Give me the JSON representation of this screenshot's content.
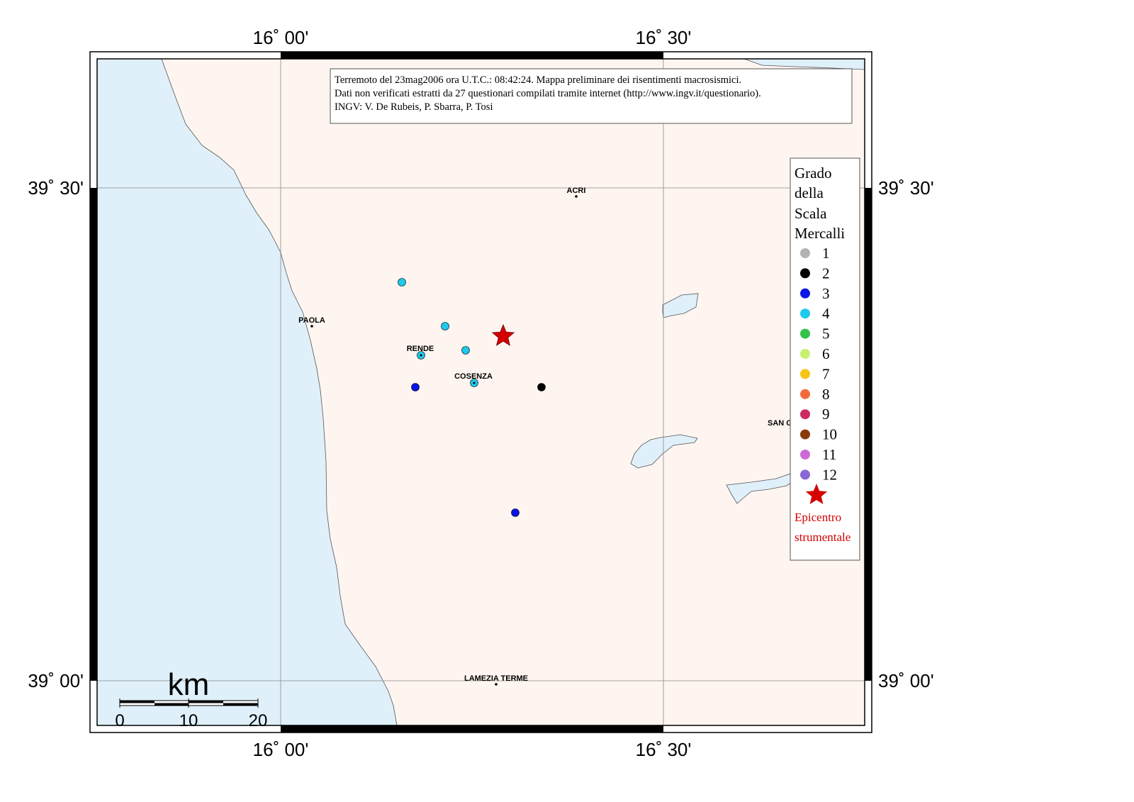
{
  "map_labels": {
    "lon_left": "16˚ 00'",
    "lon_right": "16˚ 30'",
    "lat_top": "39˚ 30'",
    "lat_bottom": "39˚ 00'"
  },
  "cities": [
    {
      "name": "ACRI"
    },
    {
      "name": "PAOLA"
    },
    {
      "name": "RENDE"
    },
    {
      "name": "COSENZA"
    },
    {
      "name": "SAN G"
    },
    {
      "name": "LAMEZIA TERME"
    }
  ],
  "info_box": {
    "line1": "Terremoto del 23mag2006 ora U.T.C.: 08:42:24.  Mappa preliminare dei risentimenti macrosismici.",
    "line2": "Dati non verificati estratti da 27 questionari compilati tramite internet (http://www.ingv.it/questionario).",
    "line3": "INGV: V.  De Rubeis, P.  Sbarra, P.  Tosi"
  },
  "legend": {
    "title_lines": [
      "Grado",
      "della",
      "Scala",
      "Mercalli"
    ],
    "items": [
      {
        "label": "1",
        "color": "#b3b3b3"
      },
      {
        "label": "2",
        "color": "#000000"
      },
      {
        "label": "3",
        "color": "#0a14e6"
      },
      {
        "label": "4",
        "color": "#1fc8ec"
      },
      {
        "label": "5",
        "color": "#33c24a"
      },
      {
        "label": "6",
        "color": "#c7f06e"
      },
      {
        "label": "7",
        "color": "#f5c518"
      },
      {
        "label": "8",
        "color": "#f26a3b"
      },
      {
        "label": "9",
        "color": "#cc2a5e"
      },
      {
        "label": "10",
        "color": "#8b3a0e"
      },
      {
        "label": "11",
        "color": "#cc6bd6"
      },
      {
        "label": "12",
        "color": "#8868d4"
      }
    ],
    "epicenter_lines": [
      "Epicentro",
      "strumentale"
    ],
    "epicenter_color": "#d40000"
  },
  "intensity_points": [
    {
      "intensity": 4
    },
    {
      "intensity": 4
    },
    {
      "intensity": 4
    },
    {
      "intensity": 4
    },
    {
      "intensity": 4
    },
    {
      "intensity": 3
    },
    {
      "intensity": 2
    },
    {
      "intensity": 3
    }
  ],
  "scale_bar": {
    "unit": "km",
    "ticks": [
      "0",
      "10",
      "20"
    ]
  },
  "colors": {
    "sea": "#dff0fb",
    "land": "#fff5f0",
    "frame": "#000000",
    "grid": "#888888"
  }
}
